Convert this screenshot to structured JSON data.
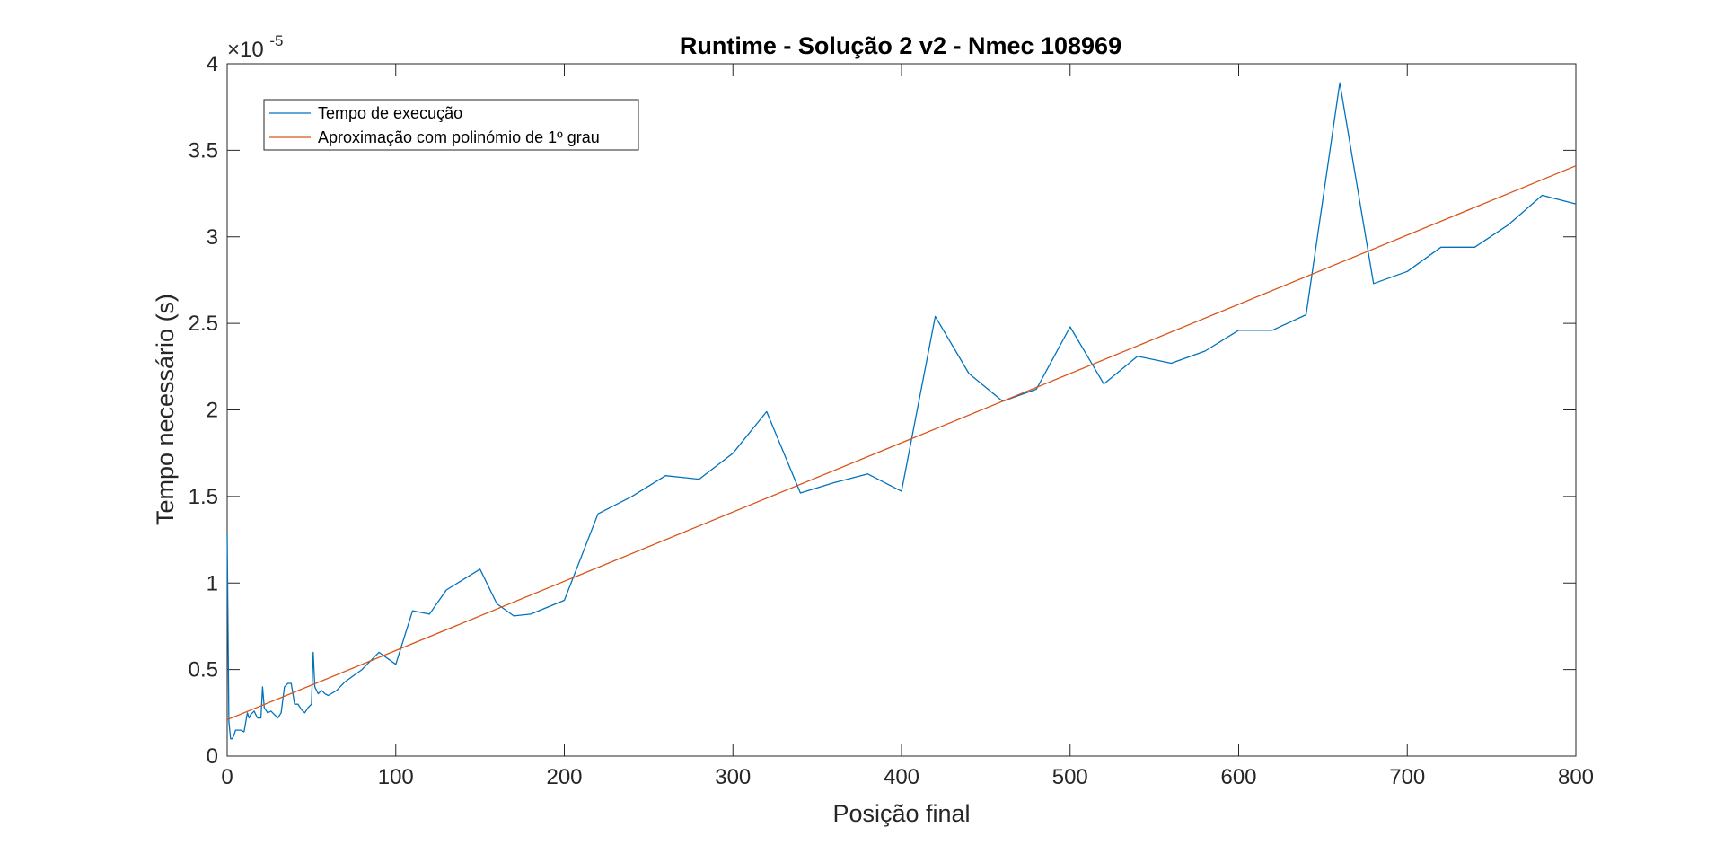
{
  "chart_data": {
    "type": "line",
    "title": "Runtime - Solução 2 v2 - Nmec 108969",
    "xlabel": "Posição final",
    "ylabel": "Tempo necessário (s)",
    "xlim": [
      0,
      800
    ],
    "ylim": [
      0,
      4
    ],
    "y_exponent_base": "×10",
    "y_exponent_power": "-5",
    "x_ticks": [
      0,
      100,
      200,
      300,
      400,
      500,
      600,
      700,
      800
    ],
    "x_tick_labels": [
      "0",
      "100",
      "200",
      "300",
      "400",
      "500",
      "600",
      "700",
      "800"
    ],
    "y_ticks": [
      0,
      0.5,
      1,
      1.5,
      2,
      2.5,
      3,
      3.5,
      4
    ],
    "y_tick_labels": [
      "0",
      "0.5",
      "1",
      "1.5",
      "2",
      "2.5",
      "3",
      "3.5",
      "4"
    ],
    "grid": false,
    "legend_position": "top-left",
    "series": [
      {
        "name": "Tempo de execução",
        "color": "#0072BD",
        "x": [
          0,
          1,
          2,
          3,
          4,
          5,
          6,
          8,
          10,
          12,
          13,
          14,
          16,
          18,
          20,
          21,
          22,
          24,
          26,
          28,
          30,
          32,
          34,
          36,
          38,
          40,
          42,
          44,
          46,
          48,
          50,
          51,
          52,
          54,
          56,
          58,
          60,
          65,
          70,
          80,
          90,
          100,
          110,
          120,
          130,
          140,
          150,
          160,
          170,
          180,
          200,
          220,
          240,
          260,
          280,
          300,
          320,
          340,
          360,
          380,
          400,
          420,
          440,
          460,
          480,
          500,
          520,
          540,
          560,
          580,
          600,
          620,
          640,
          660,
          680,
          700,
          720,
          740,
          760,
          780,
          800
        ],
        "y": [
          1.28,
          0.2,
          0.1,
          0.1,
          0.12,
          0.15,
          0.15,
          0.15,
          0.14,
          0.25,
          0.22,
          0.24,
          0.26,
          0.22,
          0.22,
          0.4,
          0.28,
          0.25,
          0.26,
          0.24,
          0.22,
          0.25,
          0.4,
          0.42,
          0.42,
          0.3,
          0.3,
          0.27,
          0.25,
          0.28,
          0.3,
          0.6,
          0.4,
          0.36,
          0.38,
          0.36,
          0.35,
          0.38,
          0.43,
          0.5,
          0.6,
          0.53,
          0.84,
          0.82,
          0.96,
          1.02,
          1.08,
          0.88,
          0.81,
          0.82,
          0.9,
          1.4,
          1.5,
          1.62,
          1.6,
          1.75,
          1.99,
          1.52,
          1.58,
          1.63,
          1.53,
          2.54,
          2.21,
          2.05,
          2.12,
          2.48,
          2.15,
          2.31,
          2.27,
          2.34,
          2.46,
          2.46,
          2.55,
          3.89,
          2.73,
          2.8,
          2.94,
          2.94,
          3.07,
          3.24,
          3.19
        ]
      },
      {
        "name": "Aproximação com polinómio de 1º grau",
        "color": "#D95319",
        "x": [
          0,
          800
        ],
        "y": [
          0.21,
          3.41
        ]
      }
    ]
  }
}
